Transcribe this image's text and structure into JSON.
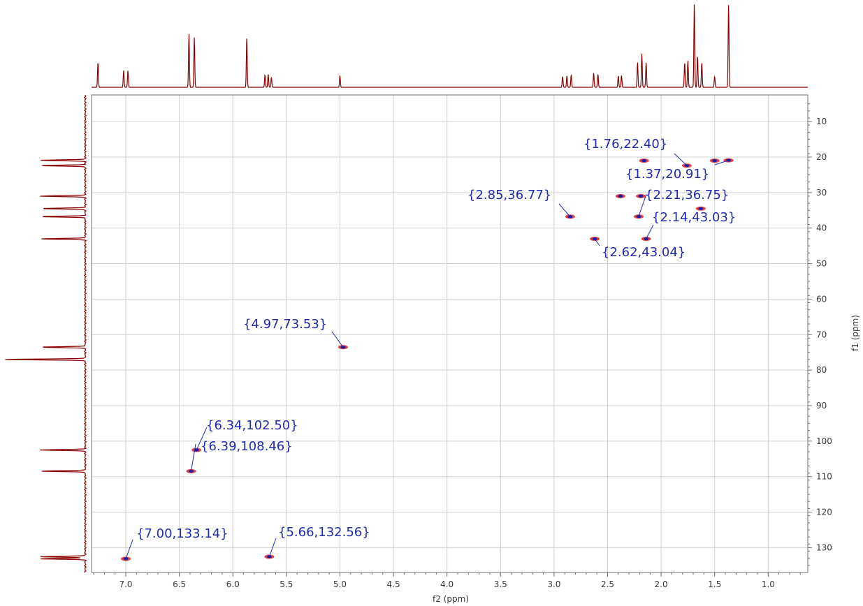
{
  "chart_data": {
    "type": "scatter",
    "subtype": "2D NMR (HSQC) correlation map",
    "xlabel": "f2 (ppm)",
    "ylabel": "f1 (ppm)",
    "x_reversed": true,
    "y_reversed": true,
    "xlim": [
      7.32,
      0.63
    ],
    "ylim": [
      2.5,
      137.0
    ],
    "x_ticks": [
      "7.0",
      "6.5",
      "6.0",
      "5.5",
      "5.0",
      "4.5",
      "4.0",
      "3.5",
      "3.0",
      "2.5",
      "2.0",
      "1.5",
      "1.0"
    ],
    "y_ticks": [
      "10",
      "20",
      "30",
      "40",
      "50",
      "60",
      "70",
      "80",
      "90",
      "100",
      "110",
      "120",
      "130"
    ],
    "grid": true,
    "peaks": [
      {
        "x": 7.0,
        "y": 133.14,
        "label": "{7.00,133.14}"
      },
      {
        "x": 5.66,
        "y": 132.56,
        "label": "{5.66,132.56}"
      },
      {
        "x": 6.39,
        "y": 108.46,
        "label": "{6.39,108.46}"
      },
      {
        "x": 6.34,
        "y": 102.5,
        "label": "{6.34,102.50}"
      },
      {
        "x": 4.97,
        "y": 73.53,
        "label": "{4.97,73.53}"
      },
      {
        "x": 2.85,
        "y": 36.77,
        "label": "{2.85,36.77}"
      },
      {
        "x": 2.62,
        "y": 43.04,
        "label": "{2.62,43.04}"
      },
      {
        "x": 2.14,
        "y": 43.03,
        "label": "{2.14,43.03}"
      },
      {
        "x": 2.21,
        "y": 36.75,
        "label": "{2.21,36.75}"
      },
      {
        "x": 1.76,
        "y": 22.4,
        "label": "{1.76,22.40}"
      },
      {
        "x": 1.37,
        "y": 20.91,
        "label": "{1.37,20.91}"
      },
      {
        "x": 2.38,
        "y": 31.0,
        "label": ""
      },
      {
        "x": 2.19,
        "y": 31.0,
        "label": ""
      },
      {
        "x": 2.16,
        "y": 21.0,
        "label": ""
      },
      {
        "x": 1.5,
        "y": 21.0,
        "label": ""
      },
      {
        "x": 1.63,
        "y": 34.5,
        "label": ""
      }
    ],
    "f2_projection_peaks": [
      {
        "x": 7.26,
        "h": 0.3
      },
      {
        "x": 7.02,
        "h": 0.2
      },
      {
        "x": 6.98,
        "h": 0.2
      },
      {
        "x": 6.41,
        "h": 0.64
      },
      {
        "x": 6.36,
        "h": 0.6
      },
      {
        "x": 5.87,
        "h": 0.6
      },
      {
        "x": 5.7,
        "h": 0.15
      },
      {
        "x": 5.67,
        "h": 0.16
      },
      {
        "x": 5.64,
        "h": 0.12
      },
      {
        "x": 5.0,
        "h": 0.14
      },
      {
        "x": 2.92,
        "h": 0.13
      },
      {
        "x": 2.88,
        "h": 0.14
      },
      {
        "x": 2.84,
        "h": 0.15
      },
      {
        "x": 2.63,
        "h": 0.17
      },
      {
        "x": 2.59,
        "h": 0.16
      },
      {
        "x": 2.4,
        "h": 0.14
      },
      {
        "x": 2.37,
        "h": 0.14
      },
      {
        "x": 2.22,
        "h": 0.3
      },
      {
        "x": 2.18,
        "h": 0.4
      },
      {
        "x": 2.14,
        "h": 0.3
      },
      {
        "x": 1.78,
        "h": 0.3
      },
      {
        "x": 1.75,
        "h": 0.32
      },
      {
        "x": 1.69,
        "h": 1.0
      },
      {
        "x": 1.66,
        "h": 0.38
      },
      {
        "x": 1.62,
        "h": 0.3
      },
      {
        "x": 1.5,
        "h": 0.13
      },
      {
        "x": 1.37,
        "h": 1.0
      }
    ],
    "f1_projection_peaks": [
      {
        "y": 20.91,
        "h": 0.55
      },
      {
        "y": 22.4,
        "h": 0.55
      },
      {
        "y": 31.0,
        "h": 0.55
      },
      {
        "y": 34.5,
        "h": 0.55
      },
      {
        "y": 36.77,
        "h": 0.55
      },
      {
        "y": 43.04,
        "h": 0.55
      },
      {
        "y": 73.53,
        "h": 0.55
      },
      {
        "y": 77.0,
        "h": 1.0
      },
      {
        "y": 102.5,
        "h": 0.55
      },
      {
        "y": 108.46,
        "h": 0.55
      },
      {
        "y": 132.56,
        "h": 0.55
      },
      {
        "y": 133.14,
        "h": 0.55
      }
    ]
  },
  "colors": {
    "projection": "#8b0000",
    "grid": "#d0d0d0",
    "frame": "#707070",
    "label": "#1f2bb0",
    "peak_core": "#1a1aa8",
    "peak_halo": "#e02020"
  }
}
